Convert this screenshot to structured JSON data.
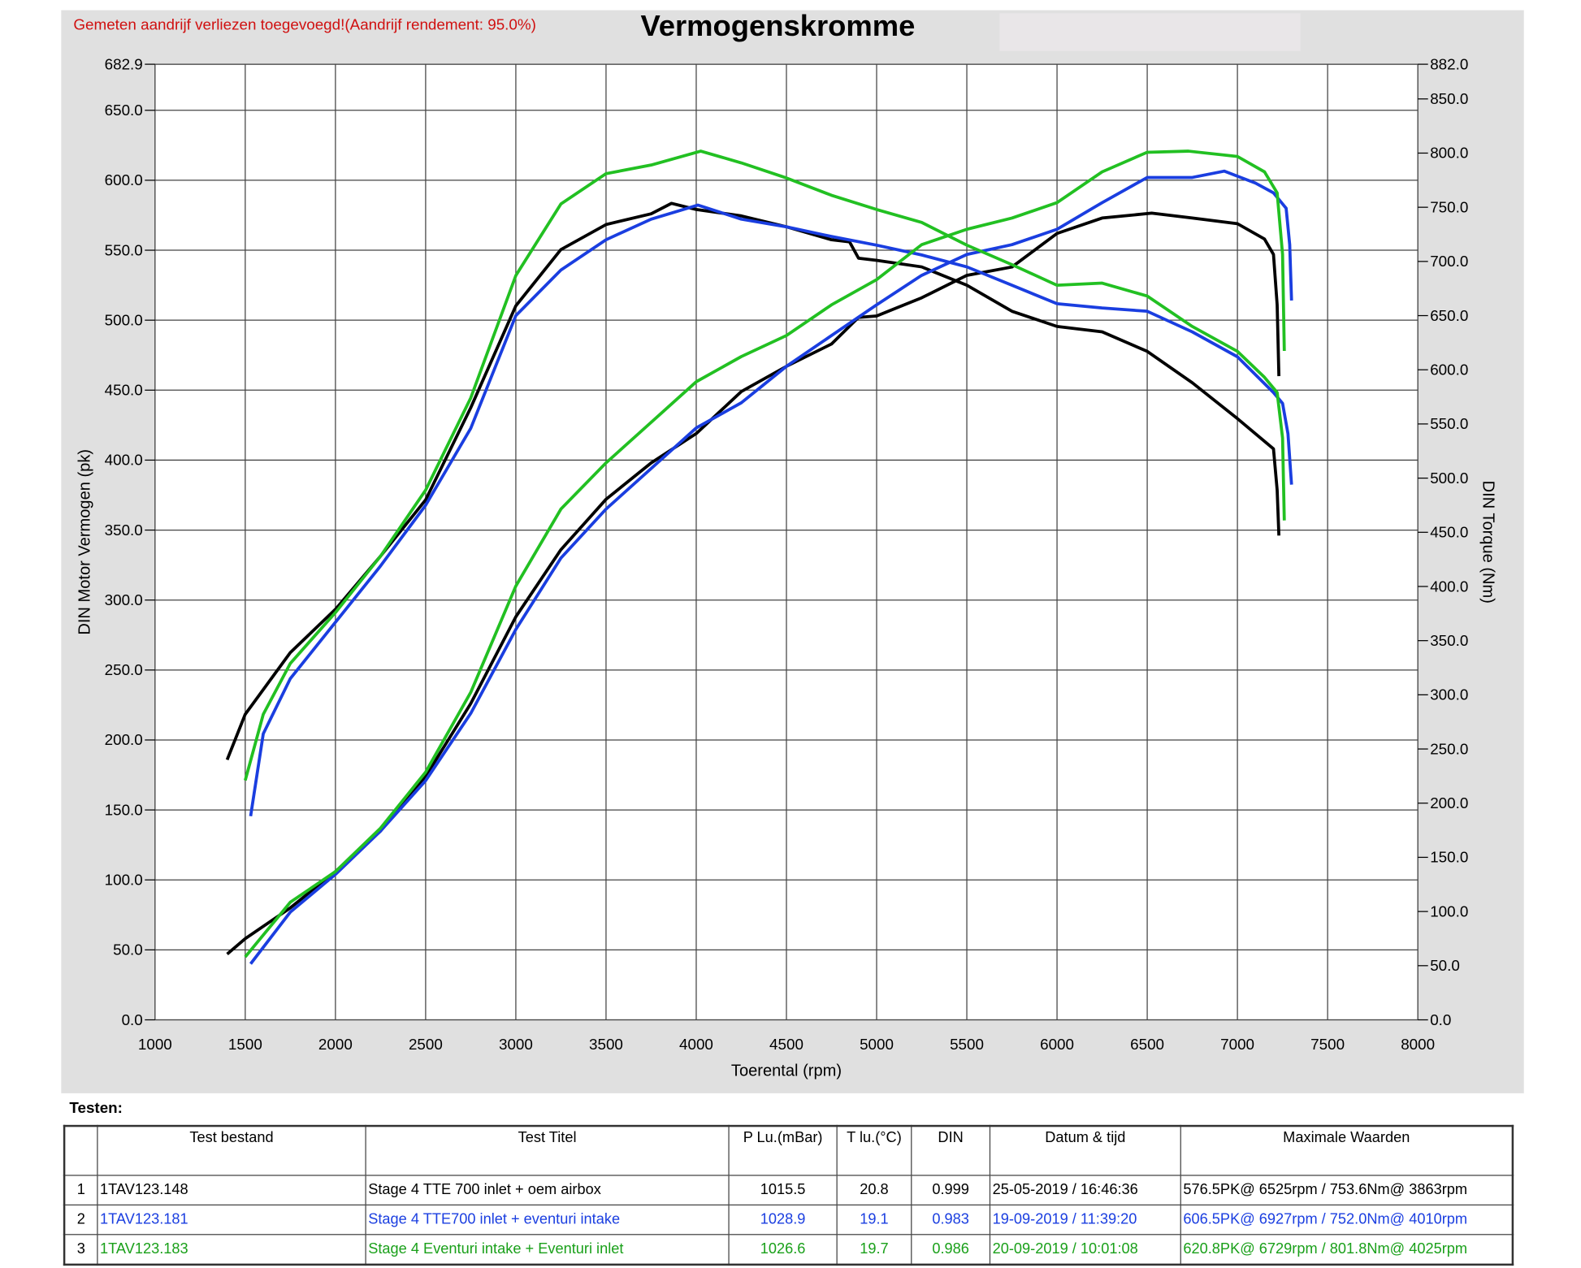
{
  "note": "Gemeten aandrijf verliezen toegevoegd!(Aandrijf rendement: 95.0%)",
  "title": "Vermogenskromme",
  "chart_data": {
    "type": "line",
    "title": "Vermogenskromme",
    "xlabel": "Toerental (rpm)",
    "ylabel": "DIN Motor Vermogen (pk)",
    "y2label": "DIN Torque (Nm)",
    "xlim": [
      1000,
      8000
    ],
    "ylim": [
      0,
      682.9
    ],
    "y2lim": [
      0,
      882.0
    ],
    "x_ticks": [
      "1000",
      "1500",
      "2000",
      "2500",
      "3000",
      "3500",
      "4000",
      "4500",
      "5000",
      "5500",
      "6000",
      "6500",
      "7000",
      "7500",
      "8000"
    ],
    "y_ticks": [
      "0.0",
      "50.0",
      "100.0",
      "150.0",
      "200.0",
      "250.0",
      "300.0",
      "350.0",
      "400.0",
      "450.0",
      "500.0",
      "550.0",
      "600.0",
      "650.0",
      "682.9"
    ],
    "y2_ticks": [
      "0.0",
      "50.0",
      "100.0",
      "150.0",
      "200.0",
      "250.0",
      "300.0",
      "350.0",
      "400.0",
      "450.0",
      "500.0",
      "550.0",
      "600.0",
      "650.0",
      "700.0",
      "750.0",
      "800.0",
      "850.0",
      "882.0"
    ],
    "grid": true,
    "series": [
      {
        "name": "1TAV123.148 power",
        "axis": "left",
        "color": "#000000",
        "points": [
          [
            1400,
            47
          ],
          [
            1500,
            58
          ],
          [
            1750,
            80
          ],
          [
            2000,
            106
          ],
          [
            2250,
            135
          ],
          [
            2500,
            174
          ],
          [
            2750,
            226
          ],
          [
            3000,
            288
          ],
          [
            3250,
            336
          ],
          [
            3500,
            372
          ],
          [
            3750,
            398
          ],
          [
            4000,
            419
          ],
          [
            4250,
            449
          ],
          [
            4500,
            467
          ],
          [
            4750,
            483
          ],
          [
            4900,
            502
          ],
          [
            5000,
            503
          ],
          [
            5250,
            516
          ],
          [
            5500,
            532
          ],
          [
            5750,
            538
          ],
          [
            6000,
            562
          ],
          [
            6250,
            573
          ],
          [
            6525,
            576.5
          ],
          [
            6750,
            573
          ],
          [
            7000,
            569
          ],
          [
            7150,
            558
          ],
          [
            7200,
            547
          ],
          [
            7220,
            511
          ],
          [
            7230,
            460
          ]
        ]
      },
      {
        "name": "1TAV123.148 torque",
        "axis": "right",
        "color": "#000000",
        "points": [
          [
            1400,
            240
          ],
          [
            1500,
            282
          ],
          [
            1750,
            339
          ],
          [
            2000,
            379
          ],
          [
            2250,
            428
          ],
          [
            2500,
            480
          ],
          [
            2750,
            565
          ],
          [
            3000,
            659
          ],
          [
            3250,
            711
          ],
          [
            3500,
            734
          ],
          [
            3750,
            744
          ],
          [
            3863,
            753.6
          ],
          [
            4000,
            748
          ],
          [
            4250,
            742
          ],
          [
            4500,
            732
          ],
          [
            4750,
            720
          ],
          [
            4850,
            718
          ],
          [
            4900,
            703
          ],
          [
            5000,
            701
          ],
          [
            5250,
            695
          ],
          [
            5500,
            678
          ],
          [
            5750,
            654
          ],
          [
            6000,
            640
          ],
          [
            6250,
            635
          ],
          [
            6500,
            617
          ],
          [
            6750,
            588
          ],
          [
            7000,
            555
          ],
          [
            7100,
            541
          ],
          [
            7200,
            527
          ],
          [
            7220,
            489
          ],
          [
            7230,
            447
          ]
        ]
      },
      {
        "name": "1TAV123.181 power",
        "axis": "left",
        "color": "#1a3ee0",
        "points": [
          [
            1530,
            40
          ],
          [
            1750,
            77
          ],
          [
            2000,
            104
          ],
          [
            2250,
            135
          ],
          [
            2500,
            171
          ],
          [
            2750,
            219
          ],
          [
            3000,
            279
          ],
          [
            3250,
            330
          ],
          [
            3500,
            365
          ],
          [
            3750,
            394
          ],
          [
            4000,
            423
          ],
          [
            4250,
            441
          ],
          [
            4500,
            467
          ],
          [
            4750,
            489
          ],
          [
            5000,
            511
          ],
          [
            5250,
            532
          ],
          [
            5500,
            547
          ],
          [
            5750,
            554
          ],
          [
            6000,
            565
          ],
          [
            6250,
            584
          ],
          [
            6500,
            602
          ],
          [
            6750,
            602
          ],
          [
            6927,
            606.5
          ],
          [
            7100,
            598
          ],
          [
            7200,
            591
          ],
          [
            7270,
            580
          ],
          [
            7290,
            554
          ],
          [
            7300,
            514
          ]
        ]
      },
      {
        "name": "1TAV123.181 torque",
        "axis": "right",
        "color": "#1a3ee0",
        "points": [
          [
            1530,
            188
          ],
          [
            1600,
            264
          ],
          [
            1750,
            315
          ],
          [
            2000,
            367
          ],
          [
            2250,
            419
          ],
          [
            2500,
            475
          ],
          [
            2750,
            546
          ],
          [
            3000,
            650
          ],
          [
            3250,
            692
          ],
          [
            3500,
            720
          ],
          [
            3750,
            739
          ],
          [
            4010,
            752.0
          ],
          [
            4250,
            739
          ],
          [
            4500,
            732
          ],
          [
            4750,
            723
          ],
          [
            5000,
            715
          ],
          [
            5250,
            706
          ],
          [
            5500,
            695
          ],
          [
            5750,
            678
          ],
          [
            6000,
            661
          ],
          [
            6250,
            657
          ],
          [
            6500,
            654
          ],
          [
            6750,
            635
          ],
          [
            7000,
            612
          ],
          [
            7200,
            579
          ],
          [
            7250,
            569
          ],
          [
            7280,
            541
          ],
          [
            7300,
            494
          ]
        ]
      },
      {
        "name": "1TAV123.183 power",
        "axis": "left",
        "color": "#22c022",
        "points": [
          [
            1500,
            45
          ],
          [
            1750,
            84
          ],
          [
            2000,
            106
          ],
          [
            2250,
            137
          ],
          [
            2500,
            177
          ],
          [
            2750,
            234
          ],
          [
            3000,
            310
          ],
          [
            3250,
            365
          ],
          [
            3500,
            398
          ],
          [
            3750,
            427
          ],
          [
            4000,
            456
          ],
          [
            4250,
            474
          ],
          [
            4500,
            489
          ],
          [
            4750,
            511
          ],
          [
            5000,
            529
          ],
          [
            5250,
            554
          ],
          [
            5500,
            565
          ],
          [
            5750,
            573
          ],
          [
            6000,
            584
          ],
          [
            6250,
            606
          ],
          [
            6500,
            620
          ],
          [
            6729,
            620.8
          ],
          [
            7000,
            617
          ],
          [
            7150,
            606
          ],
          [
            7220,
            591
          ],
          [
            7250,
            547
          ],
          [
            7260,
            478
          ]
        ]
      },
      {
        "name": "1TAV123.183 torque",
        "axis": "right",
        "color": "#22c022",
        "points": [
          [
            1500,
            221
          ],
          [
            1600,
            282
          ],
          [
            1750,
            329
          ],
          [
            2000,
            376
          ],
          [
            2250,
            428
          ],
          [
            2500,
            489
          ],
          [
            2750,
            574
          ],
          [
            3000,
            687
          ],
          [
            3250,
            753
          ],
          [
            3500,
            781
          ],
          [
            3750,
            789
          ],
          [
            4025,
            801.8
          ],
          [
            4250,
            791
          ],
          [
            4500,
            777
          ],
          [
            4750,
            761
          ],
          [
            5000,
            748
          ],
          [
            5250,
            736
          ],
          [
            5500,
            715
          ],
          [
            5750,
            697
          ],
          [
            6000,
            678
          ],
          [
            6250,
            680
          ],
          [
            6500,
            668
          ],
          [
            6750,
            640
          ],
          [
            7000,
            617
          ],
          [
            7150,
            593
          ],
          [
            7220,
            579
          ],
          [
            7250,
            537
          ],
          [
            7260,
            461
          ]
        ]
      }
    ]
  },
  "table": {
    "heading": "Testen:",
    "headers": [
      "",
      "Test bestand",
      "Test Titel",
      "P Lu.(mBar)",
      "T lu.(°C)",
      "DIN",
      "Datum & tijd",
      "Maximale Waarden"
    ],
    "rows": [
      {
        "color": "#000000",
        "cells": [
          "1",
          "1TAV123.148",
          "Stage 4 TTE 700  inlet + oem airbox",
          "1015.5",
          "20.8",
          "0.999",
          "25-05-2019 / 16:46:36",
          "576.5PK@ 6525rpm / 753.6Nm@ 3863rpm"
        ]
      },
      {
        "color": "#1a3ee0",
        "cells": [
          "2",
          "1TAV123.181",
          "Stage 4 TTE700 inlet + eventuri intake",
          "1028.9",
          "19.1",
          "0.983",
          "19-09-2019 / 11:39:20",
          "606.5PK@ 6927rpm / 752.0Nm@ 4010rpm"
        ]
      },
      {
        "color": "#1aa01a",
        "cells": [
          "3",
          "1TAV123.183",
          "Stage 4 Eventuri intake + Eventuri inlet",
          "1026.6",
          "19.7",
          "0.986",
          "20-09-2019 / 10:01:08",
          "620.8PK@ 6729rpm / 801.8Nm@ 4025rpm"
        ]
      }
    ]
  }
}
